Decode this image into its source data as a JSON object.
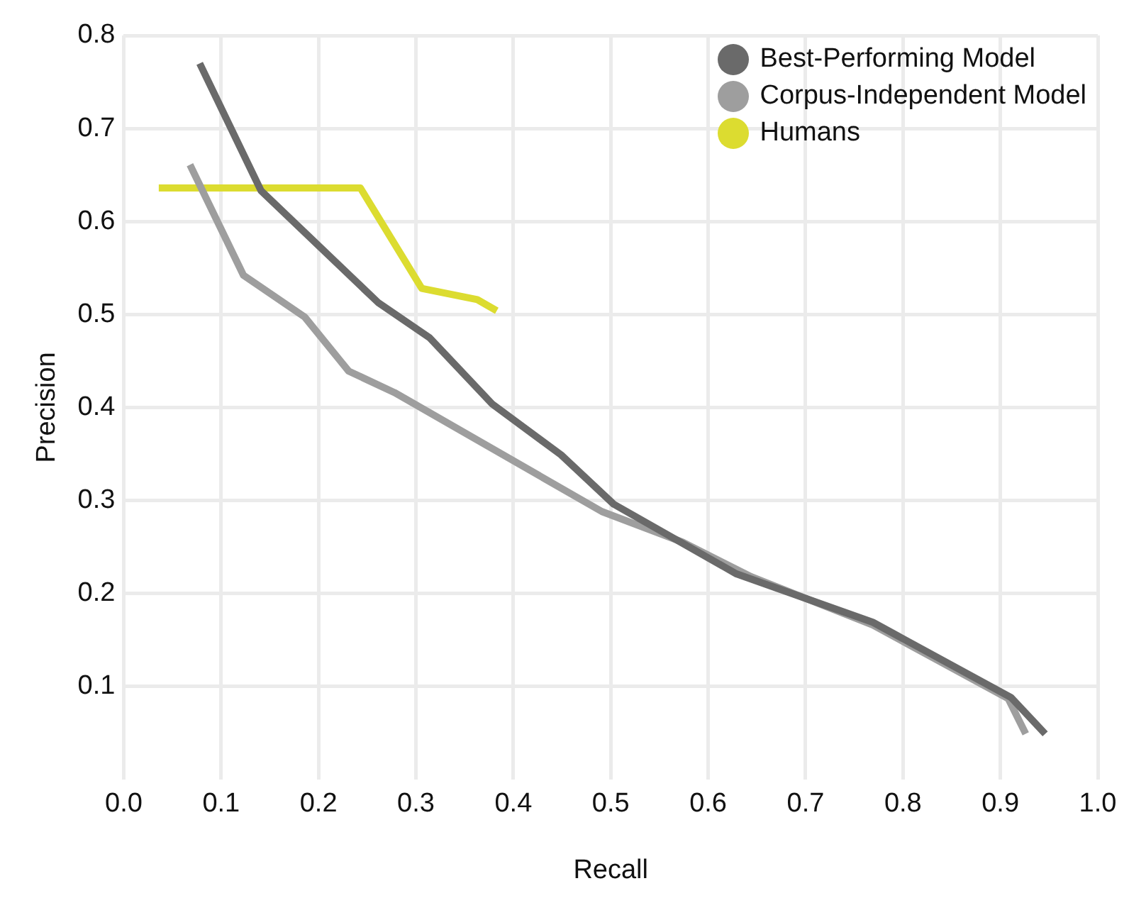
{
  "chart_data": {
    "type": "line",
    "xlabel": "Recall",
    "ylabel": "Precision",
    "xlim": [
      0,
      1
    ],
    "xticks": [
      {
        "value": 0,
        "label": "0.0"
      },
      0.1,
      0.2,
      0.3,
      0.4,
      0.5,
      0.6,
      0.7,
      0.8,
      0.9,
      {
        "value": 1,
        "label": "1.0"
      }
    ],
    "ylim": [
      0,
      0.8
    ],
    "yticks": [
      0.1,
      0.2,
      0.3,
      0.4,
      0.5,
      0.6,
      0.7,
      0.8
    ],
    "grid": true,
    "legend": "top right",
    "marker": "none",
    "line_style": "solid",
    "series": [
      {
        "name": "Best-Performing Model",
        "color": "#6a6a6a",
        "x": [
          0.078,
          0.141,
          0.261,
          0.314,
          0.378,
          0.449,
          0.503,
          0.629,
          0.769,
          0.911,
          0.946
        ],
        "values": [
          0.77,
          0.633,
          0.513,
          0.475,
          0.404,
          0.349,
          0.296,
          0.221,
          0.169,
          0.088,
          0.049
        ]
      },
      {
        "name": "Corpus-Independent Model",
        "color": "#9e9e9e",
        "x": [
          0.068,
          0.123,
          0.186,
          0.231,
          0.278,
          0.491,
          0.574,
          0.644,
          0.769,
          0.908,
          0.926
        ],
        "values": [
          0.661,
          0.542,
          0.497,
          0.439,
          0.416,
          0.288,
          0.255,
          0.218,
          0.166,
          0.087,
          0.049
        ]
      },
      {
        "name": "Humans",
        "color": "#dcdc30",
        "x": [
          0.036,
          0.243,
          0.306,
          0.363,
          0.383
        ],
        "values": [
          0.636,
          0.636,
          0.528,
          0.516,
          0.504
        ]
      }
    ]
  }
}
